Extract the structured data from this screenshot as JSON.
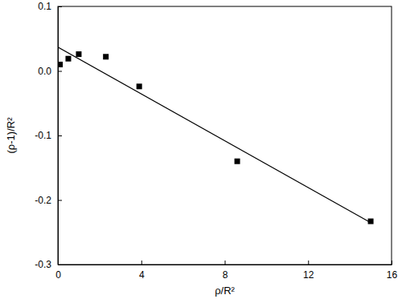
{
  "chart_data": {
    "type": "scatter",
    "x_label": "ρ/R²",
    "y_label": "(ρ-1)/R²",
    "xlim": [
      0,
      16
    ],
    "xticks": [
      0,
      4,
      8,
      12,
      16
    ],
    "ylim": [
      -0.3,
      0.1
    ],
    "yticks": [
      -0.3,
      -0.2,
      -0.1,
      {
        "value": 0,
        "label": "0.0"
      },
      0.1
    ],
    "grid": false,
    "series": [
      {
        "type": "scatter",
        "marker": "square",
        "color": "#000000",
        "x": [
          0.1,
          0.5,
          1.0,
          2.3,
          3.9,
          8.6,
          15.0
        ],
        "values": [
          0.01,
          0.019,
          0.026,
          0.022,
          -0.024,
          -0.14,
          -0.233
        ]
      },
      {
        "type": "line",
        "line_style": "solid",
        "color": "#000000",
        "x": [
          0,
          15
        ],
        "values": [
          0.037,
          -0.235
        ]
      }
    ]
  }
}
